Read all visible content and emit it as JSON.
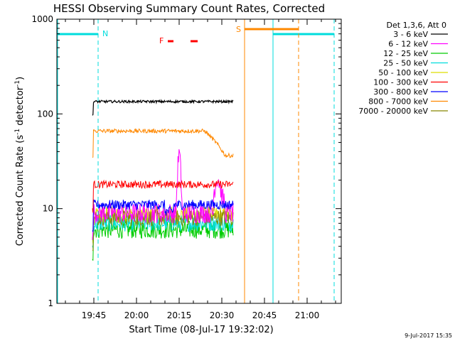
{
  "chart_data": {
    "type": "line",
    "title": "HESSI Observing Summary Count Rates, Corrected",
    "xlabel": "Start Time (08-Jul-17 19:32:02)",
    "ylabel_main": "Corrected Count Rate (s",
    "ylabel_sup1": "-1",
    "ylabel_mid": " detector",
    "ylabel_sup2": "-1",
    "ylabel_end": ")",
    "y_scale": "log",
    "ylim": [
      1,
      1000
    ],
    "xlim": [
      "19:32",
      "21:12"
    ],
    "x_tick_labels": [
      "19:45",
      "20:00",
      "20:15",
      "20:30",
      "20:45",
      "21:00"
    ],
    "y_tick_labels": [
      "1",
      "10",
      "100",
      "1000"
    ],
    "y_tick_values": [
      1,
      10,
      100,
      1000
    ],
    "legend_title": "Det 1,3,6, Att 0",
    "legend_position": "right",
    "timestamp": "9-Jul-2017 15:35",
    "series": [
      {
        "name": "3 - 6 keV",
        "color": "#000000",
        "start": "19:44.5",
        "end": "20:34",
        "level": 135
      },
      {
        "name": "6 - 12 keV",
        "color": "#ff00ff",
        "start": "19:44.5",
        "end": "20:34",
        "level": 9
      },
      {
        "name": "12 - 25 keV",
        "color": "#00cc00",
        "start": "19:44.5",
        "end": "20:34",
        "level": 6
      },
      {
        "name": "25 - 50 keV",
        "color": "#00dddd",
        "start": "19:44.5",
        "end": "20:34",
        "level": 7
      },
      {
        "name": "50 - 100 keV",
        "color": "#dddd00",
        "start": "19:44.5",
        "end": "20:34",
        "level": 8.5
      },
      {
        "name": "100 - 300 keV",
        "color": "#ff0000",
        "start": "19:44.5",
        "end": "20:34",
        "level": 18
      },
      {
        "name": "300 - 800 keV",
        "color": "#0000ff",
        "start": "19:44.5",
        "end": "20:34",
        "level": 11
      },
      {
        "name": "800 - 7000 keV",
        "color": "#ff8800",
        "start": "19:44.5",
        "end": "20:34",
        "level": 66
      },
      {
        "name": "7000 - 20000 keV",
        "color": "#888800",
        "start": "19:44.5",
        "end": "20:34",
        "level": 8
      }
    ],
    "annotations": {
      "night": {
        "label": "N",
        "color": "#00dddd",
        "intervals": [
          [
            "19:32",
            "19:46.5"
          ],
          [
            "20:48",
            "21:09.5"
          ]
        ]
      },
      "flare": {
        "label": "F",
        "color": "#ff0000",
        "intervals": [
          [
            "20:11",
            "20:13"
          ],
          [
            "20:19",
            "20:21.5"
          ]
        ]
      },
      "saa": {
        "label": "S",
        "color": "#ff8800",
        "intervals": [
          [
            "20:38",
            "20:57"
          ]
        ]
      }
    }
  }
}
